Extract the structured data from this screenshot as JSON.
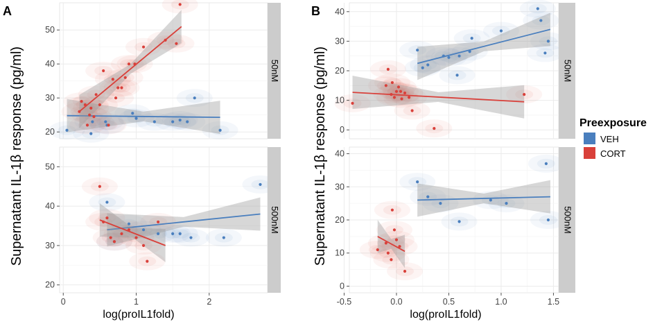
{
  "colors": {
    "veh": "#4a7fbe",
    "cort": "#d9403a",
    "band": "#9a9a9a",
    "panel_bg": "#ffffff",
    "grid": "#ebebeb",
    "strip": "#cccccc"
  },
  "legend": {
    "title": "Preexposure",
    "items": [
      {
        "label": "VEH",
        "color": "#4a7fbe"
      },
      {
        "label": "CORT",
        "color": "#d9403a"
      }
    ]
  },
  "chart_data": [
    {
      "type": "scatter",
      "panel_label": "A",
      "xlabel": "log(proIL1fold)",
      "ylabel": "Supernatant IL-1β response (pg/ml)",
      "xlim": [
        -0.05,
        2.8
      ],
      "xticks": [
        0,
        1,
        2
      ],
      "facets": [
        {
          "strip": "50nM",
          "ylim": [
            18,
            58
          ],
          "yticks": [
            20,
            30,
            40,
            50
          ],
          "series": [
            {
              "name": "VEH",
              "points": [
                [
                  0.05,
                  20.5
                ],
                [
                  0.38,
                  19.5
                ],
                [
                  0.4,
                  23
                ],
                [
                  0.58,
                  23
                ],
                [
                  0.6,
                  22
                ],
                [
                  0.95,
                  25.5
                ],
                [
                  1.0,
                  24
                ],
                [
                  1.25,
                  23
                ],
                [
                  1.5,
                  23
                ],
                [
                  1.6,
                  23.5
                ],
                [
                  1.7,
                  23
                ],
                [
                  1.8,
                  30
                ],
                [
                  2.15,
                  20.5
                ]
              ],
              "fit": [
                [
                  0.05,
                  24.8
                ],
                [
                  2.15,
                  24.3
                ]
              ]
            },
            {
              "name": "CORT",
              "points": [
                [
                  0.22,
                  26
                ],
                [
                  0.25,
                  29
                ],
                [
                  0.3,
                  28
                ],
                [
                  0.33,
                  22
                ],
                [
                  0.36,
                  25
                ],
                [
                  0.38,
                  27
                ],
                [
                  0.42,
                  24.5
                ],
                [
                  0.45,
                  31
                ],
                [
                  0.5,
                  28
                ],
                [
                  0.55,
                  38
                ],
                [
                  0.62,
                  22
                ],
                [
                  0.68,
                  35.5
                ],
                [
                  0.72,
                  30
                ],
                [
                  0.75,
                  33
                ],
                [
                  0.8,
                  33
                ],
                [
                  0.85,
                  36
                ],
                [
                  0.9,
                  40
                ],
                [
                  0.98,
                  40
                ],
                [
                  1.1,
                  45
                ],
                [
                  1.4,
                  47
                ],
                [
                  1.55,
                  46
                ],
                [
                  1.6,
                  57.5
                ]
              ],
              "fit": [
                [
                  0.22,
                  26
                ],
                [
                  1.62,
                  51
                ]
              ]
            }
          ]
        },
        {
          "strip": "500nM",
          "ylim": [
            18,
            55
          ],
          "yticks": [
            20,
            30,
            40,
            50
          ],
          "series": [
            {
              "name": "VEH",
              "points": [
                [
                  0.6,
                  41
                ],
                [
                  0.7,
                  31
                ],
                [
                  0.9,
                  35.5
                ],
                [
                  1.1,
                  34
                ],
                [
                  1.3,
                  33
                ],
                [
                  1.5,
                  33
                ],
                [
                  1.6,
                  33
                ],
                [
                  1.75,
                  32
                ],
                [
                  2.2,
                  32
                ],
                [
                  2.7,
                  45.5
                ]
              ],
              "fit": [
                [
                  0.6,
                  34
                ],
                [
                  2.7,
                  38
                ]
              ]
            },
            {
              "name": "CORT",
              "points": [
                [
                  0.5,
                  45
                ],
                [
                  0.55,
                  36
                ],
                [
                  0.6,
                  37
                ],
                [
                  0.65,
                  32
                ],
                [
                  0.7,
                  31
                ],
                [
                  0.8,
                  33
                ],
                [
                  0.9,
                  34
                ],
                [
                  1.0,
                  32
                ],
                [
                  1.1,
                  30
                ],
                [
                  1.15,
                  26
                ],
                [
                  1.3,
                  36
                ]
              ],
              "fit": [
                [
                  0.5,
                  36.5
                ],
                [
                  1.4,
                  30
                ]
              ]
            }
          ]
        }
      ]
    },
    {
      "type": "scatter",
      "panel_label": "B",
      "xlabel": "log(proIL1fold)",
      "ylabel": "Supernatant IL-1β response (pg/ml)",
      "xlim": [
        -0.45,
        1.55
      ],
      "xticks": [
        -0.5,
        0.0,
        0.5,
        1.0,
        1.5
      ],
      "xtick_labels": [
        "-0.5",
        "0.0",
        "0.5",
        "1.0",
        "1.5"
      ],
      "facets": [
        {
          "strip": "50nM",
          "ylim": [
            -3,
            43
          ],
          "yticks": [
            0,
            10,
            20,
            30,
            40
          ],
          "series": [
            {
              "name": "VEH",
              "points": [
                [
                  0.2,
                  27
                ],
                [
                  0.25,
                  21
                ],
                [
                  0.3,
                  22
                ],
                [
                  0.45,
                  25
                ],
                [
                  0.5,
                  24.5
                ],
                [
                  0.58,
                  18.5
                ],
                [
                  0.6,
                  25
                ],
                [
                  0.7,
                  26.5
                ],
                [
                  0.72,
                  31
                ],
                [
                  1.0,
                  33.5
                ],
                [
                  1.35,
                  41
                ],
                [
                  1.38,
                  37
                ],
                [
                  1.42,
                  26
                ],
                [
                  1.45,
                  30
                ]
              ],
              "fit": [
                [
                  0.2,
                  22.5
                ],
                [
                  1.47,
                  34
                ]
              ]
            },
            {
              "name": "CORT",
              "points": [
                [
                  -0.42,
                  9
                ],
                [
                  -0.1,
                  15
                ],
                [
                  -0.08,
                  20.5
                ],
                [
                  -0.05,
                  12
                ],
                [
                  -0.04,
                  16
                ],
                [
                  -0.02,
                  11
                ],
                [
                  0.0,
                  13
                ],
                [
                  0.02,
                  14.5
                ],
                [
                  0.04,
                  13
                ],
                [
                  0.05,
                  10.5
                ],
                [
                  0.08,
                  12.5
                ],
                [
                  0.12,
                  11
                ],
                [
                  0.15,
                  6.5
                ],
                [
                  0.36,
                  0.5
                ],
                [
                  1.22,
                  12
                ]
              ],
              "fit": [
                [
                  -0.42,
                  12.7
                ],
                [
                  1.22,
                  9.5
                ]
              ]
            }
          ]
        },
        {
          "strip": "500nM",
          "ylim": [
            -2,
            42
          ],
          "yticks": [
            0,
            10,
            20,
            30,
            40
          ],
          "series": [
            {
              "name": "VEH",
              "points": [
                [
                  0.2,
                  31.5
                ],
                [
                  0.3,
                  27
                ],
                [
                  0.42,
                  25
                ],
                [
                  0.6,
                  19.5
                ],
                [
                  0.9,
                  26
                ],
                [
                  1.05,
                  25
                ],
                [
                  1.43,
                  37
                ],
                [
                  1.45,
                  20
                ]
              ],
              "fit": [
                [
                  0.2,
                  26
                ],
                [
                  1.47,
                  27
                ]
              ]
            },
            {
              "name": "CORT",
              "points": [
                [
                  -0.18,
                  11
                ],
                [
                  -0.1,
                  13
                ],
                [
                  -0.08,
                  10
                ],
                [
                  -0.05,
                  8
                ],
                [
                  -0.04,
                  23
                ],
                [
                  -0.02,
                  17
                ],
                [
                  0.0,
                  14
                ],
                [
                  0.03,
                  12
                ],
                [
                  0.08,
                  4.5
                ]
              ],
              "fit": [
                [
                  -0.18,
                  15
                ],
                [
                  0.08,
                  10.5
                ]
              ]
            }
          ]
        }
      ]
    }
  ]
}
